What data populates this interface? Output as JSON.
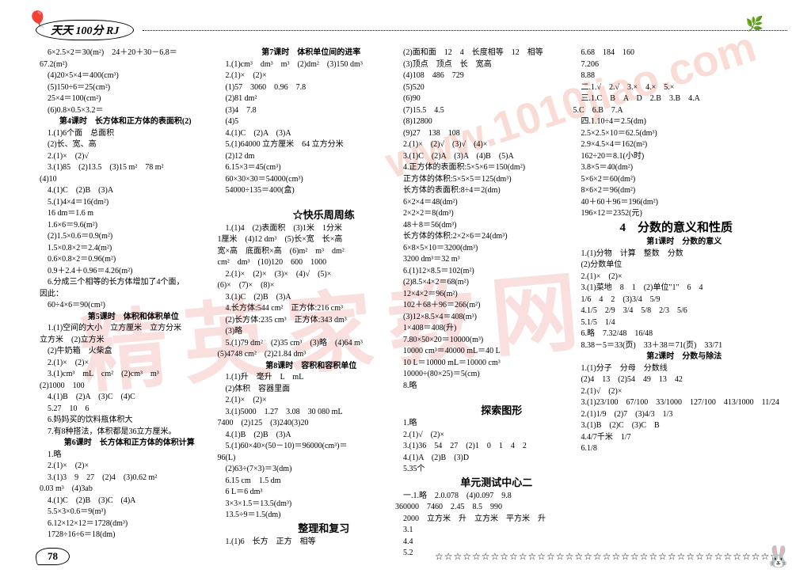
{
  "header": {
    "title": "天天 100分 RJ"
  },
  "watermarks": {
    "wm1": "精英家教网",
    "wm2": "www.1010jiao.com"
  },
  "footer": {
    "page": "78",
    "stars": "☆☆☆☆☆☆☆☆☆☆☆☆☆☆☆☆☆☆☆☆☆☆☆☆☆☆☆☆☆☆☆☆☆☆☆☆☆"
  },
  "columns": [
    {
      "lines": [
        "　6×2.5×2＝30(m²)　24＋20＋30－6.8＝",
        "67.2(m²)",
        "　(4)20×5×4＝400(cm³)",
        "　(5)150÷6＝25(cm²)",
        "　25×4＝100(cm²)",
        "　(6)0.8×0.5×3.2＝",
        "第4课时　长方体和正方体的表面积(2)",
        "　1.(1)6个面　总面积",
        "　(2)长、宽、高",
        "　2.(1)×　(2)√",
        "　3.(1)85　(2)13.5　(3)15 m²　78 m²",
        "(4)10",
        "　4.(1)C　(2)B　(3)A",
        "　5.(1)4×4＝16(dm²)",
        "　16 dm＝1.6 m",
        "　1.6×6＝9.6(m²)",
        "　(2)1.5×0.6＝0.9(m²)",
        "　1.5×0.8×2＝2.4(m²)",
        "　0.6×0.8×2＝0.96(m²)",
        "　0.9＋2.4＋0.96＝4.26(m²)",
        "　6.分成三个相等的长方体增加了4个面，",
        "因此：",
        "　60÷4×6＝90(cm²)",
        "　　第5课时　体积和体积单位",
        "　1.(1)空间的大小　立方厘米　立方分米",
        "立方米　(2)立方米",
        "　(2)牛奶箱　火柴盒",
        "　2.(1)×　(2)×",
        "　3.(1)cm³　mL　cm²　(2)cm³　m³",
        "(2)1000　100",
        "　4.(1)B　(2)A　(3)C　(4)C",
        "　5.27　10　6",
        "　6.妈妈买的饮料瓶体积大",
        "　7.有8种搭法，体积都是36立方厘米。",
        "　第6课时　长方体和正方体的体积计算",
        "　1.略",
        "　2.(1)×　(2)×",
        "　3.(1)3　9　27　(2)4　(3)0.62 m²",
        "0.03 m³　(4)3ab",
        "　4.(1)C　(2)B　(3)C　(4)A",
        "　5.5×3×0.6＝9(m³)",
        "　6.12×12×12＝1728(dm³)",
        "　1728÷16÷6＝18(dm)"
      ]
    },
    {
      "lines": [
        "　　第7课时　体积单位间的进率",
        "　1.(1)cm³　dm³　m³　(2)dm²　(3)150 dm³",
        "　2.(1)×　(2)×",
        "　(1)57　3060　0.96　7.8",
        "　(2)81 dm²",
        "　(3)4　7.8",
        "　(4)5",
        "　4.(1)C　(2)A　(3)A",
        "　5.(1)64000 立方厘米　64 立方分米",
        "　(2)12 dm",
        "　6.15×3＝45(cm³)",
        "　60×30×30＝54000(cm³)",
        "　54000÷135＝400(盒)",
        "",
        "　　　　☆快乐周周练",
        "　1.(1)4　(2)表面积　(3)1米　1分米",
        "1厘米　(4)12 dm³　(5)长×宽　长×高",
        "宽×高　底面积×高　(6)m²　m³　dm²",
        "cm²　dm³　(10)120　600　1000",
        "　2.(1)×　(2)×　(3)×　(4)√　(5)×",
        "(6)×　(7)×　(8)×",
        "　3.(1)C　(2)B　(3)A",
        "　4.长方体:544 cm²　正方体:216 cm³",
        "　(2)长方体:235 cm³　正方体:343 dm³",
        "　(3)略",
        "　5.(1)79 dm²　(2)35 cm³　(3)略　(4)64 m³",
        "(5)4748 cm²　(2)21.84 dm³",
        "　　第8课时　容积和容积单位",
        "　1.(1)升　毫升　L　mL",
        "　(2)体积　容器里面",
        "　2.(1)×　(2)×",
        "　3.(1)5000　1.27　3.08　30 080 mL",
        "7400　(2)125　(3)240(3)20",
        "　4.(1)B　(2)B　(3)A",
        "　5.(1)60×40×(50－10)＝96000(cm³)＝",
        "96(L)",
        "　(2)63÷(7×3)＝3(dm)",
        "　6.15 cm　1.5 dm",
        "　6 L＝6 dm³",
        "　3×3×1.5＝13.5(dm³)",
        "　13.5÷9＝1.5(dm)",
        "　　　　整理和复习",
        "　1.(1)6　长方　正方　相等"
      ]
    },
    {
      "lines": [
        "　(2)面和面　12　4　长度相等　12　相等",
        "　(3)顶点　顶点　长　宽高",
        "　(4)108　486　729",
        "　(5)520",
        "　(6)90",
        "　(7)15.5　4.5",
        "　(8)12800",
        "　(9)27　138　108",
        "　2.(1)×　(2)√　(3)√　(4)×",
        "　3.(1)C　(2)A　(3)A　(4)B　(5)A",
        "　4.正方体的表面积:5×5×6＝150(dm²)",
        "　正方体的体积:5×5×5＝125(dm³)",
        "　长方体的表面积:8÷4＝2(dm)",
        "　6×2×4＝48(dm²)",
        "　2×2×2＝8(dm³)",
        "　48＋8＝56(dm³)",
        "　长方体的体积:2×2×6＝24(dm³)",
        "　6×8×5×10＝3200(dm³)",
        "　3200 dm³＝32 m³",
        "　6.(1)12×8.5＝102(m²)",
        "　(2)8.5×4×2＝68(m²)",
        "　12×4×2＝96(m²)",
        "　102＋68＋96＝266(m²)",
        "　(3)12×8.5×4＝408(m³)",
        "　1×408＝408(升)",
        "　7.80×50×20＝10000(m³)",
        "　10000 cm³＝40000 mL＝40 L",
        "　10 L＝10000 mL＝10000 cm³",
        "　10000÷(80×25)＝5(cm)",
        "　8.略",
        "",
        "　　　　探索图形",
        "　1.略",
        "　2.(1)√　(2)×",
        "　3.(1)36　54　27　(2)1　0　1　4　2",
        "　4.(1)A　(2)B　(3)D",
        "　5.35个",
        "　　　单元测试中心二",
        "　一.1.略　2.0.078　(4)0.097　9.8",
        "360000　7460　2.45　8.5　990",
        "　2000　立方米　升　立方米　平方米　升",
        "　3.1",
        "　4.4",
        "　5.2"
      ]
    },
    {
      "lines": [
        "　6.68　184　160",
        "　7.206",
        "　8.88",
        "　二.1.√　2.√　3.×　4.×　5.×",
        "　三.1.C　B　A　D　2.B　3.B　4.A",
        "5.C　6.B　7.A",
        "　四.1.10÷4＝2.5(dm)",
        "　2.5×2.5×10＝62.5(dm³)",
        "　2.9×4.5×4＝162(m²)",
        "　162÷20＝8.1(小时)",
        "　3.8×5＝40(dm²)",
        "　5×6×2＝60(dm²)",
        "　8×6×2＝96(dm²)",
        "　40＋60＋96＝196(dm²)",
        "　196×12＝2352(元)",
        "4　分数的意义和性质",
        "　　第1课时　分数的意义",
        "　1.(1)分物　计算　整数　分数",
        "　(2)分数单位",
        "　2.(1)×　(2)×",
        "　3.(1)菜地　8　1　(2)单位\"1\"　6　4",
        "　1/6　4　2　(3)3/4　5/9",
        "　4.1/5　2/9　3/4　5/8　2/3　5/6",
        "　5.1/5　1/4",
        "　6.略　7.32/48　16/48",
        "　8.38－5＝33(页)　33＋38＝71(页)　33/71",
        "　　第2课时　分数与除法",
        "　1.(1)分子　分母　分数线",
        "　(2)4　13　(2)54　49　13　42",
        "　2.(1)√　(2)×",
        "　3.(1)23/100　67/100　33/1000　127/100　413/1000　11/24",
        "　2.(1)1/9　(2)7　(3)4/3　1/3",
        "　3.(1)B　(2)C　(3)C　B",
        "　4.4/7千米　1/7",
        "　6.1/8"
      ]
    }
  ]
}
